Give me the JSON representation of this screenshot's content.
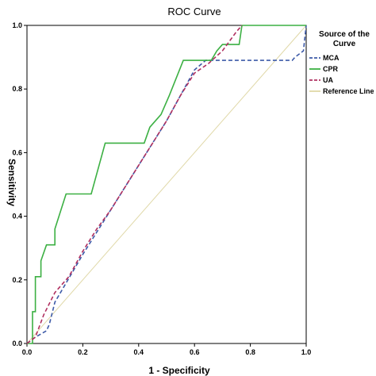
{
  "chart_data": {
    "type": "line",
    "title": "ROC Curve",
    "xlabel": "1 - Specificity",
    "ylabel": "Sensitivity",
    "xlim": [
      0,
      1
    ],
    "ylim": [
      0,
      1
    ],
    "xticks": [
      "0.0",
      "0.2",
      "0.4",
      "0.6",
      "0.8",
      "1.0"
    ],
    "yticks": [
      "0.0",
      "0.2",
      "0.4",
      "0.6",
      "0.8",
      "1.0"
    ],
    "grid": false,
    "legend": {
      "title_line1": "Source of the",
      "title_line2": "Curve",
      "placement": "right"
    },
    "series": [
      {
        "name": "MCA",
        "color": "#3d5aa8",
        "dash": "dashed",
        "points": [
          [
            0,
            0
          ],
          [
            0.03,
            0.02
          ],
          [
            0.07,
            0.04
          ],
          [
            0.08,
            0.06
          ],
          [
            0.1,
            0.13
          ],
          [
            0.2,
            0.28
          ],
          [
            0.3,
            0.42
          ],
          [
            0.4,
            0.56
          ],
          [
            0.5,
            0.7
          ],
          [
            0.6,
            0.86
          ],
          [
            0.64,
            0.89
          ],
          [
            0.7,
            0.89
          ],
          [
            0.95,
            0.89
          ],
          [
            0.96,
            0.9
          ],
          [
            0.99,
            0.92
          ],
          [
            1,
            1
          ]
        ]
      },
      {
        "name": "CPR",
        "color": "#3cb043",
        "dash": "solid",
        "points": [
          [
            0,
            0
          ],
          [
            0.02,
            0
          ],
          [
            0.02,
            0.1
          ],
          [
            0.03,
            0.1
          ],
          [
            0.03,
            0.21
          ],
          [
            0.05,
            0.21
          ],
          [
            0.05,
            0.26
          ],
          [
            0.07,
            0.31
          ],
          [
            0.1,
            0.31
          ],
          [
            0.1,
            0.36
          ],
          [
            0.14,
            0.47
          ],
          [
            0.23,
            0.47
          ],
          [
            0.28,
            0.63
          ],
          [
            0.42,
            0.63
          ],
          [
            0.44,
            0.68
          ],
          [
            0.48,
            0.72
          ],
          [
            0.51,
            0.78
          ],
          [
            0.56,
            0.89
          ],
          [
            0.66,
            0.89
          ],
          [
            0.68,
            0.92
          ],
          [
            0.7,
            0.94
          ],
          [
            0.76,
            0.94
          ],
          [
            0.77,
            1
          ],
          [
            1,
            1
          ]
        ]
      },
      {
        "name": "UA",
        "color": "#b03060",
        "dash": "dashed",
        "points": [
          [
            0,
            0
          ],
          [
            0.03,
            0.02
          ],
          [
            0.06,
            0.09
          ],
          [
            0.1,
            0.16
          ],
          [
            0.15,
            0.21
          ],
          [
            0.2,
            0.29
          ],
          [
            0.25,
            0.36
          ],
          [
            0.3,
            0.42
          ],
          [
            0.4,
            0.56
          ],
          [
            0.45,
            0.63
          ],
          [
            0.5,
            0.7
          ],
          [
            0.55,
            0.78
          ],
          [
            0.6,
            0.85
          ],
          [
            0.65,
            0.88
          ],
          [
            0.7,
            0.92
          ],
          [
            0.75,
            0.98
          ],
          [
            0.77,
            1
          ]
        ]
      },
      {
        "name": "Reference Line",
        "color": "#e0d8a8",
        "dash": "solid",
        "points": [
          [
            0,
            0
          ],
          [
            1,
            1
          ]
        ]
      }
    ]
  }
}
